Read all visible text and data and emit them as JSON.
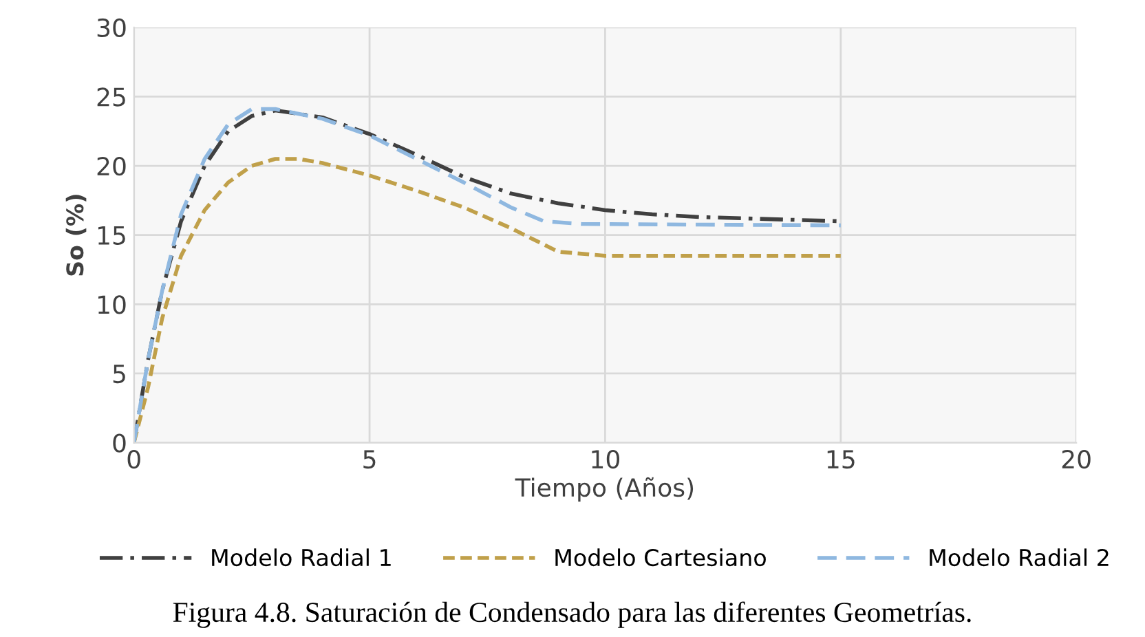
{
  "chart_data": {
    "type": "line",
    "xlabel": "Tiempo (Años)",
    "ylabel": "So (%)",
    "xlim": [
      0,
      20
    ],
    "xticks": [
      0,
      5,
      10,
      15,
      20
    ],
    "ylim": [
      0,
      30
    ],
    "yticks": [
      0,
      5,
      10,
      15,
      20,
      25,
      30
    ],
    "grid": true,
    "legend": "bottom",
    "marker": "none",
    "annotations": [
      "Figura 4.8. Saturación de Condensado para las diferentes Geometrías."
    ],
    "series": [
      {
        "name": "Modelo Radial 1",
        "color": "#404040",
        "line_style": "dashdot",
        "x": [
          0,
          0.3,
          0.6,
          1,
          1.5,
          2,
          2.5,
          3,
          4,
          5,
          6,
          7,
          8,
          9,
          10,
          11,
          12,
          13,
          14,
          15
        ],
        "values": [
          0,
          6,
          11,
          16,
          20,
          22.5,
          23.6,
          24,
          23.5,
          22.3,
          20.8,
          19.2,
          18,
          17.3,
          16.8,
          16.5,
          16.3,
          16.2,
          16.1,
          16
        ]
      },
      {
        "name": "Modelo Cartesiano",
        "color": "#c0a04a",
        "line_style": "dashed",
        "x": [
          0,
          0.3,
          0.6,
          1,
          1.5,
          2,
          2.5,
          3,
          3.5,
          4,
          5,
          6,
          7,
          8,
          9,
          10,
          15
        ],
        "values": [
          0,
          4,
          9,
          13.5,
          16.8,
          18.8,
          20,
          20.5,
          20.5,
          20.2,
          19.3,
          18.2,
          17,
          15.5,
          13.8,
          13.5,
          13.5
        ]
      },
      {
        "name": "Modelo Radial 2",
        "color": "#8fb8e0",
        "line_style": "dashed",
        "x": [
          0,
          0.3,
          0.6,
          1,
          1.5,
          2,
          2.5,
          3,
          4,
          5,
          6,
          7,
          8,
          8.7,
          9.5,
          15
        ],
        "values": [
          0,
          6,
          11,
          16.5,
          20.5,
          23,
          24.1,
          24.1,
          23.4,
          22.2,
          20.5,
          18.8,
          17,
          16,
          15.8,
          15.7
        ]
      }
    ]
  }
}
